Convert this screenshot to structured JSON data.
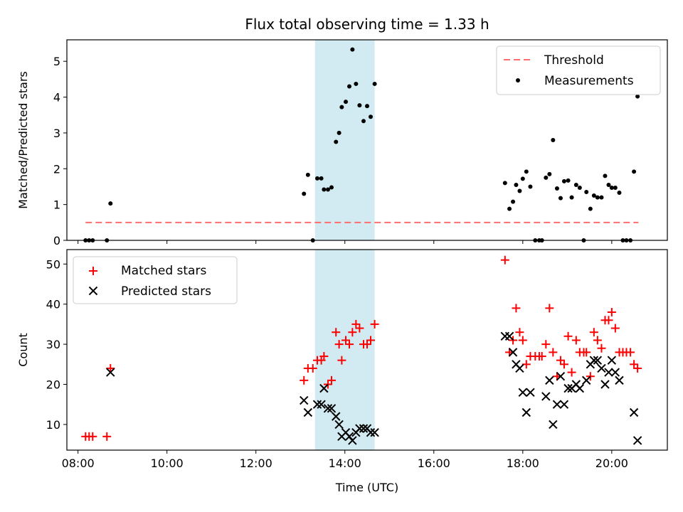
{
  "chart_data": {
    "type": "scatter",
    "title": "Flux total observing time = 1.33 h",
    "xlabel": "Time (UTC)",
    "x_ticks": [
      "08:00",
      "10:00",
      "12:00",
      "14:00",
      "16:00",
      "18:00",
      "20:00"
    ],
    "x_tick_hours": [
      8,
      10,
      12,
      14,
      16,
      18,
      20
    ],
    "xlim_hours": [
      7.75,
      21.25
    ],
    "highlight_span_hours": [
      13.33,
      14.67
    ],
    "highlight_color": "#add8e6",
    "panels": [
      {
        "ylabel": "Matched/Predicted stars",
        "ylim": [
          0,
          5.6
        ],
        "y_ticks": [
          0,
          1,
          2,
          3,
          4,
          5
        ],
        "legend_position": "top-right",
        "threshold": {
          "name": "Threshold",
          "value": 0.5,
          "x_range_hours": [
            8.17,
            20.6
          ],
          "color": "#ff6e6e"
        },
        "measurements": {
          "name": "Measurements",
          "color": "#000000",
          "points": [
            [
              8.17,
              0
            ],
            [
              8.25,
              0
            ],
            [
              8.33,
              0
            ],
            [
              8.65,
              0
            ],
            [
              8.73,
              1.03
            ],
            [
              13.08,
              1.3
            ],
            [
              13.17,
              1.83
            ],
            [
              13.28,
              0
            ],
            [
              13.38,
              1.73
            ],
            [
              13.47,
              1.73
            ],
            [
              13.53,
              1.42
            ],
            [
              13.62,
              1.42
            ],
            [
              13.7,
              1.48
            ],
            [
              13.8,
              2.75
            ],
            [
              13.87,
              3.0
            ],
            [
              13.93,
              3.72
            ],
            [
              14.02,
              3.87
            ],
            [
              14.1,
              4.3
            ],
            [
              14.17,
              5.33
            ],
            [
              14.25,
              4.37
            ],
            [
              14.33,
              3.77
            ],
            [
              14.42,
              3.33
            ],
            [
              14.5,
              3.75
            ],
            [
              14.58,
              3.45
            ],
            [
              14.67,
              4.37
            ],
            [
              17.6,
              1.6
            ],
            [
              17.7,
              0.88
            ],
            [
              17.78,
              1.08
            ],
            [
              17.85,
              1.55
            ],
            [
              17.93,
              1.38
            ],
            [
              18.0,
              1.72
            ],
            [
              18.08,
              1.92
            ],
            [
              18.17,
              1.5
            ],
            [
              18.28,
              0
            ],
            [
              18.37,
              0
            ],
            [
              18.43,
              0
            ],
            [
              18.52,
              1.75
            ],
            [
              18.6,
              1.85
            ],
            [
              18.68,
              2.8
            ],
            [
              18.77,
              1.45
            ],
            [
              18.85,
              1.18
            ],
            [
              18.93,
              1.65
            ],
            [
              19.02,
              1.67
            ],
            [
              19.1,
              1.2
            ],
            [
              19.2,
              1.55
            ],
            [
              19.28,
              1.47
            ],
            [
              19.37,
              0
            ],
            [
              19.43,
              1.35
            ],
            [
              19.52,
              0.88
            ],
            [
              19.6,
              1.25
            ],
            [
              19.68,
              1.2
            ],
            [
              19.77,
              1.2
            ],
            [
              19.85,
              1.8
            ],
            [
              19.93,
              1.55
            ],
            [
              20.0,
              1.47
            ],
            [
              20.08,
              1.47
            ],
            [
              20.17,
              1.33
            ],
            [
              20.25,
              0
            ],
            [
              20.33,
              0
            ],
            [
              20.42,
              0
            ],
            [
              20.5,
              1.92
            ],
            [
              20.58,
              4.02
            ]
          ]
        }
      },
      {
        "ylabel": "Count",
        "ylim": [
          3.6,
          53.6
        ],
        "y_ticks": [
          10,
          20,
          30,
          40,
          50
        ],
        "legend_position": "top-left",
        "matched": {
          "name": "Matched stars",
          "color": "#ff0000",
          "points": [
            [
              8.17,
              7
            ],
            [
              8.25,
              7
            ],
            [
              8.33,
              7
            ],
            [
              8.65,
              7
            ],
            [
              8.73,
              24
            ],
            [
              13.08,
              21
            ],
            [
              13.17,
              24
            ],
            [
              13.28,
              24
            ],
            [
              13.38,
              26
            ],
            [
              13.47,
              26
            ],
            [
              13.53,
              27
            ],
            [
              13.62,
              20
            ],
            [
              13.7,
              21
            ],
            [
              13.8,
              33
            ],
            [
              13.87,
              30
            ],
            [
              13.93,
              26
            ],
            [
              14.02,
              31
            ],
            [
              14.1,
              30
            ],
            [
              14.17,
              33
            ],
            [
              14.25,
              35
            ],
            [
              14.33,
              34
            ],
            [
              14.42,
              30
            ],
            [
              14.5,
              30
            ],
            [
              14.58,
              31
            ],
            [
              14.67,
              35
            ],
            [
              17.6,
              51
            ],
            [
              17.7,
              28
            ],
            [
              17.78,
              31
            ],
            [
              17.85,
              39
            ],
            [
              17.93,
              33
            ],
            [
              18.0,
              31
            ],
            [
              18.08,
              25
            ],
            [
              18.17,
              27
            ],
            [
              18.28,
              27
            ],
            [
              18.37,
              27
            ],
            [
              18.43,
              27
            ],
            [
              18.52,
              30
            ],
            [
              18.6,
              39
            ],
            [
              18.68,
              28
            ],
            [
              18.77,
              22
            ],
            [
              18.85,
              26
            ],
            [
              18.93,
              25
            ],
            [
              19.02,
              32
            ],
            [
              19.1,
              23
            ],
            [
              19.2,
              31
            ],
            [
              19.28,
              28
            ],
            [
              19.37,
              28
            ],
            [
              19.43,
              28
            ],
            [
              19.52,
              22
            ],
            [
              19.6,
              33
            ],
            [
              19.68,
              31
            ],
            [
              19.77,
              29
            ],
            [
              19.85,
              36
            ],
            [
              19.93,
              36
            ],
            [
              20.0,
              38
            ],
            [
              20.08,
              34
            ],
            [
              20.17,
              28
            ],
            [
              20.25,
              28
            ],
            [
              20.33,
              28
            ],
            [
              20.42,
              28
            ],
            [
              20.5,
              25
            ],
            [
              20.58,
              24
            ]
          ]
        },
        "predicted": {
          "name": "Predicted stars",
          "color": "#000000",
          "points": [
            [
              8.73,
              23
            ],
            [
              13.08,
              16
            ],
            [
              13.17,
              13
            ],
            [
              13.38,
              15
            ],
            [
              13.47,
              15
            ],
            [
              13.53,
              19
            ],
            [
              13.62,
              14
            ],
            [
              13.7,
              14
            ],
            [
              13.8,
              12
            ],
            [
              13.87,
              10
            ],
            [
              13.93,
              7
            ],
            [
              14.02,
              8
            ],
            [
              14.1,
              7
            ],
            [
              14.17,
              6
            ],
            [
              14.25,
              8
            ],
            [
              14.33,
              9
            ],
            [
              14.42,
              9
            ],
            [
              14.5,
              9
            ],
            [
              14.58,
              8
            ],
            [
              14.67,
              8
            ],
            [
              17.6,
              32
            ],
            [
              17.7,
              32
            ],
            [
              17.78,
              28
            ],
            [
              17.85,
              25
            ],
            [
              17.93,
              24
            ],
            [
              18.0,
              18
            ],
            [
              18.08,
              13
            ],
            [
              18.17,
              18
            ],
            [
              18.52,
              17
            ],
            [
              18.6,
              21
            ],
            [
              18.68,
              10
            ],
            [
              18.77,
              15
            ],
            [
              18.85,
              22
            ],
            [
              18.93,
              15
            ],
            [
              19.02,
              19
            ],
            [
              19.1,
              19
            ],
            [
              19.2,
              20
            ],
            [
              19.28,
              19
            ],
            [
              19.43,
              21
            ],
            [
              19.52,
              25
            ],
            [
              19.6,
              26
            ],
            [
              19.68,
              26
            ],
            [
              19.77,
              24
            ],
            [
              19.85,
              20
            ],
            [
              19.93,
              23
            ],
            [
              20.0,
              26
            ],
            [
              20.08,
              23
            ],
            [
              20.17,
              21
            ],
            [
              20.5,
              13
            ],
            [
              20.58,
              6
            ]
          ]
        }
      }
    ]
  }
}
